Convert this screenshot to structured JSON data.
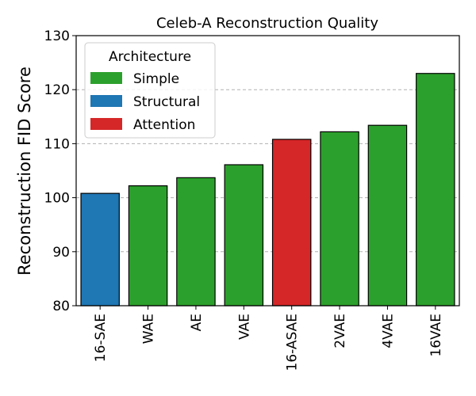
{
  "chart_data": {
    "type": "bar",
    "title": "Celeb-A Reconstruction Quality",
    "xlabel": "",
    "ylabel": "Reconstruction FID Score",
    "ylim": [
      80,
      130
    ],
    "yticks": [
      80,
      90,
      100,
      110,
      120,
      130
    ],
    "grid": "y-dashed",
    "categories": [
      "16-SAE",
      "WAE",
      "AE",
      "VAE",
      "16-ASAE",
      "2VAE",
      "4VAE",
      "16VAE"
    ],
    "values": [
      100.8,
      102.2,
      103.7,
      106.1,
      110.8,
      112.2,
      113.4,
      123.0
    ],
    "bar_groups": [
      "Structural",
      "Simple",
      "Simple",
      "Simple",
      "Attention",
      "Simple",
      "Simple",
      "Simple"
    ],
    "legend": {
      "title": "Architecture",
      "placement": "top-left",
      "entries": [
        {
          "name": "Simple",
          "color": "#2ca02c"
        },
        {
          "name": "Structural",
          "color": "#1f77b4"
        },
        {
          "name": "Attention",
          "color": "#d62728"
        }
      ]
    }
  }
}
